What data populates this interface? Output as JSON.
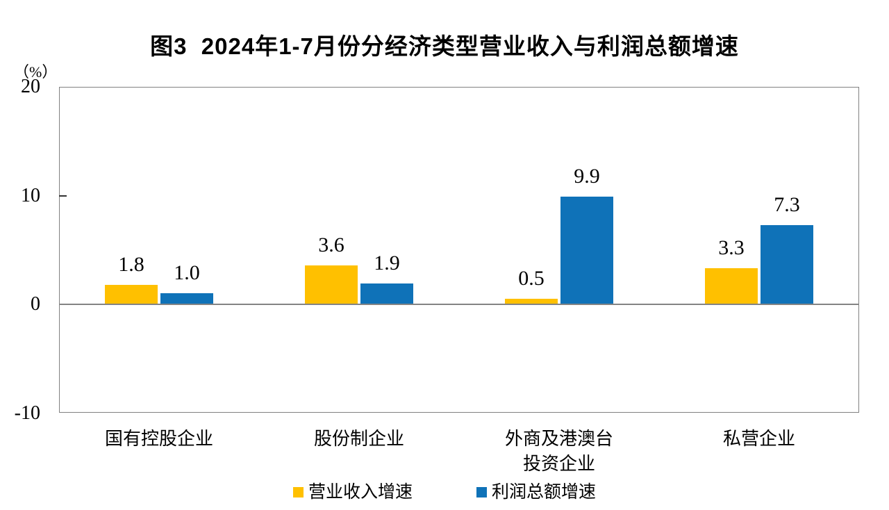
{
  "chart_data": {
    "type": "bar",
    "title": "图3  2024年1-7月份分经济类型营业收入与利润总额增速",
    "unit_label": "（%）",
    "categories": [
      "国有控股企业",
      "股份制企业",
      "外商及港澳台\n投资企业",
      "私营企业"
    ],
    "series": [
      {
        "name": "营业收入增速",
        "key": "revenue-growth",
        "color": "#FFC000",
        "values": [
          1.8,
          3.6,
          0.5,
          3.3
        ],
        "labels": [
          "1.8",
          "3.6",
          "0.5",
          "3.3"
        ]
      },
      {
        "name": "利润总额增速",
        "key": "profit-growth",
        "color": "#0F72B8",
        "values": [
          1.0,
          1.9,
          9.9,
          7.3
        ],
        "labels": [
          "1.0",
          "1.9",
          "9.9",
          "7.3"
        ]
      }
    ],
    "ylim": [
      -10,
      20
    ],
    "y_ticks": [
      20,
      10,
      0,
      -10
    ],
    "grid": false,
    "legend_position": "bottom",
    "axis_color": "#808080",
    "zero_line_color": "#848484"
  }
}
